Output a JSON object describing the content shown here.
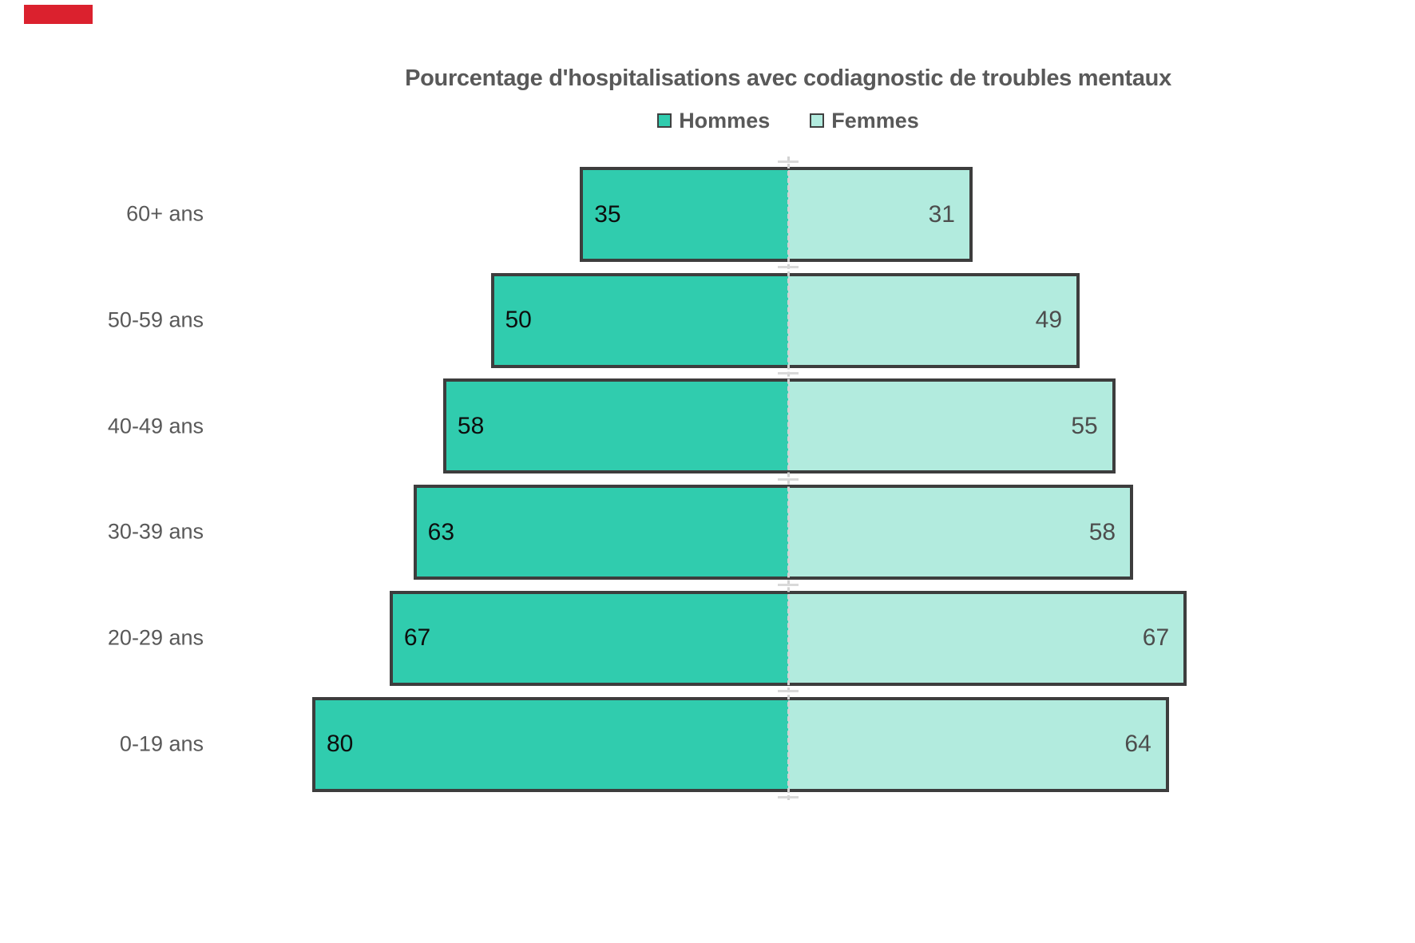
{
  "annotation": {
    "marker_color": "#DB212E"
  },
  "chart_data": {
    "type": "bar",
    "subtype": "bidirectional-pyramid",
    "title": "Pourcentage d'hospitalisations avec codiagnostic de troubles mentaux",
    "categories": [
      "60+ ans",
      "50-59 ans",
      "40-49 ans",
      "30-39 ans",
      "20-29 ans",
      "0-19 ans"
    ],
    "series": [
      {
        "name": "Hommes",
        "direction": "left",
        "values": [
          35,
          50,
          58,
          63,
          67,
          80
        ],
        "color": "#30CCAE",
        "value_label_color": "#0D0D0D"
      },
      {
        "name": "Femmes",
        "direction": "right",
        "values": [
          31,
          49,
          55,
          58,
          67,
          64
        ],
        "color": "#B2EBDE",
        "value_label_color": "#4D4D4D"
      }
    ],
    "unit": "%",
    "legend_position": "top-center",
    "value_labels": "inside-outer-end",
    "grid": "off",
    "axis": {
      "center_line_color": "#D2D2D2",
      "tick_color": "#D9D9D9",
      "bar_border_color": "#3D3D3D",
      "label_color": "#595959"
    },
    "xlim_left": [
      0,
      100
    ],
    "xlim_right": [
      0,
      100
    ]
  }
}
